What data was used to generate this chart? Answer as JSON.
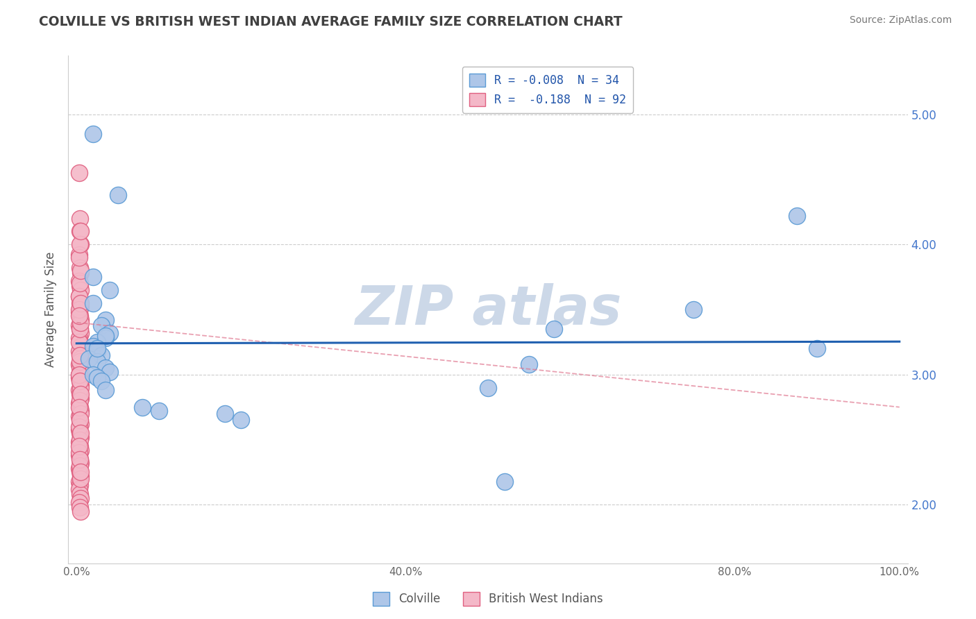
{
  "title": "COLVILLE VS BRITISH WEST INDIAN AVERAGE FAMILY SIZE CORRELATION CHART",
  "source": "Source: ZipAtlas.com",
  "ylabel": "Average Family Size",
  "ylim": [
    1.55,
    5.45
  ],
  "xlim": [
    -0.01,
    1.01
  ],
  "yticks": [
    2.0,
    3.0,
    4.0,
    5.0
  ],
  "xticks": [
    0.0,
    0.2,
    0.4,
    0.6,
    0.8,
    1.0
  ],
  "xtick_labels": [
    "0.0%",
    "",
    "40.0%",
    "",
    "80.0%",
    "100.0%"
  ],
  "colville_color": "#aec6e8",
  "colville_edge": "#5b9bd5",
  "bwi_color": "#f4b8c8",
  "bwi_edge": "#e06080",
  "trend_colville_color": "#2060b0",
  "trend_bwi_color": "#e07890",
  "background_color": "#ffffff",
  "grid_color": "#cccccc",
  "title_color": "#404040",
  "watermark_color": "#ccd8e8",
  "colville_points": [
    [
      0.02,
      4.85
    ],
    [
      0.05,
      4.38
    ],
    [
      0.875,
      4.22
    ],
    [
      0.02,
      3.75
    ],
    [
      0.04,
      3.65
    ],
    [
      0.02,
      3.55
    ],
    [
      0.75,
      3.5
    ],
    [
      0.035,
      3.42
    ],
    [
      0.03,
      3.38
    ],
    [
      0.58,
      3.35
    ],
    [
      0.04,
      3.32
    ],
    [
      0.035,
      3.28
    ],
    [
      0.025,
      3.25
    ],
    [
      0.02,
      3.22
    ],
    [
      0.9,
      3.2
    ],
    [
      0.025,
      3.18
    ],
    [
      0.03,
      3.15
    ],
    [
      0.015,
      3.12
    ],
    [
      0.025,
      3.1
    ],
    [
      0.55,
      3.08
    ],
    [
      0.035,
      3.05
    ],
    [
      0.04,
      3.02
    ],
    [
      0.02,
      3.0
    ],
    [
      0.025,
      2.98
    ],
    [
      0.03,
      2.95
    ],
    [
      0.5,
      2.9
    ],
    [
      0.035,
      2.88
    ],
    [
      0.08,
      2.75
    ],
    [
      0.1,
      2.72
    ],
    [
      0.18,
      2.7
    ],
    [
      0.2,
      2.65
    ],
    [
      0.52,
      2.18
    ],
    [
      0.035,
      3.3
    ],
    [
      0.025,
      3.2
    ]
  ],
  "bwi_points": [
    [
      0.003,
      4.55
    ],
    [
      0.004,
      4.2
    ],
    [
      0.004,
      4.1
    ],
    [
      0.005,
      4.0
    ],
    [
      0.003,
      3.92
    ],
    [
      0.004,
      3.82
    ],
    [
      0.005,
      3.78
    ],
    [
      0.003,
      3.72
    ],
    [
      0.004,
      3.68
    ],
    [
      0.005,
      3.65
    ],
    [
      0.003,
      3.6
    ],
    [
      0.004,
      3.55
    ],
    [
      0.005,
      3.52
    ],
    [
      0.003,
      3.48
    ],
    [
      0.004,
      3.45
    ],
    [
      0.005,
      3.42
    ],
    [
      0.003,
      3.38
    ],
    [
      0.004,
      3.35
    ],
    [
      0.005,
      3.32
    ],
    [
      0.003,
      3.28
    ],
    [
      0.004,
      3.25
    ],
    [
      0.005,
      3.22
    ],
    [
      0.003,
      3.18
    ],
    [
      0.004,
      3.15
    ],
    [
      0.005,
      3.12
    ],
    [
      0.003,
      3.08
    ],
    [
      0.004,
      3.05
    ],
    [
      0.005,
      3.02
    ],
    [
      0.003,
      2.98
    ],
    [
      0.004,
      2.95
    ],
    [
      0.005,
      2.92
    ],
    [
      0.003,
      2.88
    ],
    [
      0.004,
      2.85
    ],
    [
      0.005,
      2.82
    ],
    [
      0.003,
      2.78
    ],
    [
      0.004,
      2.75
    ],
    [
      0.005,
      2.72
    ],
    [
      0.003,
      2.68
    ],
    [
      0.004,
      2.65
    ],
    [
      0.005,
      2.62
    ],
    [
      0.003,
      2.58
    ],
    [
      0.004,
      2.55
    ],
    [
      0.005,
      2.52
    ],
    [
      0.003,
      2.48
    ],
    [
      0.004,
      2.45
    ],
    [
      0.005,
      2.42
    ],
    [
      0.003,
      2.38
    ],
    [
      0.004,
      2.35
    ],
    [
      0.005,
      2.32
    ],
    [
      0.003,
      2.28
    ],
    [
      0.004,
      2.25
    ],
    [
      0.005,
      2.22
    ],
    [
      0.003,
      2.18
    ],
    [
      0.004,
      2.15
    ],
    [
      0.003,
      2.12
    ],
    [
      0.004,
      2.08
    ],
    [
      0.005,
      2.05
    ],
    [
      0.003,
      2.02
    ],
    [
      0.004,
      1.98
    ],
    [
      0.005,
      1.95
    ],
    [
      0.003,
      3.6
    ],
    [
      0.004,
      3.7
    ],
    [
      0.005,
      3.8
    ],
    [
      0.003,
      3.25
    ],
    [
      0.004,
      3.35
    ],
    [
      0.005,
      2.9
    ],
    [
      0.003,
      3.0
    ],
    [
      0.004,
      3.1
    ],
    [
      0.005,
      3.4
    ],
    [
      0.003,
      3.5
    ],
    [
      0.004,
      2.8
    ],
    [
      0.005,
      2.7
    ],
    [
      0.003,
      2.6
    ],
    [
      0.004,
      2.5
    ],
    [
      0.003,
      2.4
    ],
    [
      0.004,
      2.3
    ],
    [
      0.005,
      2.2
    ],
    [
      0.003,
      3.9
    ],
    [
      0.004,
      4.0
    ],
    [
      0.005,
      4.1
    ],
    [
      0.003,
      3.0
    ],
    [
      0.004,
      3.15
    ],
    [
      0.005,
      3.55
    ],
    [
      0.003,
      3.45
    ],
    [
      0.004,
      2.95
    ],
    [
      0.005,
      2.85
    ],
    [
      0.003,
      2.75
    ],
    [
      0.004,
      2.65
    ],
    [
      0.005,
      2.55
    ],
    [
      0.003,
      2.45
    ],
    [
      0.004,
      2.35
    ],
    [
      0.005,
      2.25
    ]
  ],
  "legend_label_colville": "R = -0.008  N = 34",
  "legend_label_bwi": "R =  -0.188  N = 92",
  "bottom_legend_colville": "Colville",
  "bottom_legend_bwi": "British West Indians"
}
